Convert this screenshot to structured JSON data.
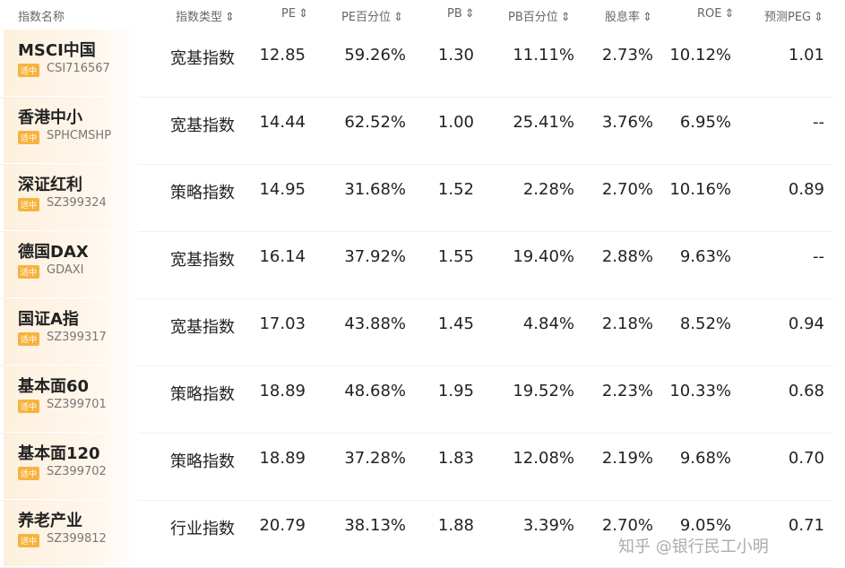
{
  "headers": [
    "指数名称",
    "指数类型",
    "PE",
    "PE百分位",
    "PB",
    "PB百分位",
    "股息率",
    "ROE",
    "预测PEG"
  ],
  "tag_label": "适中",
  "rows": [
    {
      "name": "MSCI中国",
      "code": "CSI716567",
      "type": "宽基指数",
      "pe": "12.85",
      "pe_pct": "59.26%",
      "pb": "1.30",
      "pb_pct": "11.11%",
      "dy": "2.73%",
      "roe": "10.12%",
      "peg": "1.01"
    },
    {
      "name": "香港中小",
      "code": "SPHCMSHP",
      "type": "宽基指数",
      "pe": "14.44",
      "pe_pct": "62.52%",
      "pb": "1.00",
      "pb_pct": "25.41%",
      "dy": "3.76%",
      "roe": "6.95%",
      "peg": "--"
    },
    {
      "name": "深证红利",
      "code": "SZ399324",
      "type": "策略指数",
      "pe": "14.95",
      "pe_pct": "31.68%",
      "pb": "1.52",
      "pb_pct": "2.28%",
      "dy": "2.70%",
      "roe": "10.16%",
      "peg": "0.89"
    },
    {
      "name": "德国DAX",
      "code": "GDAXI",
      "type": "宽基指数",
      "pe": "16.14",
      "pe_pct": "37.92%",
      "pb": "1.55",
      "pb_pct": "19.40%",
      "dy": "2.88%",
      "roe": "9.63%",
      "peg": "--"
    },
    {
      "name": "国证A指",
      "code": "SZ399317",
      "type": "宽基指数",
      "pe": "17.03",
      "pe_pct": "43.88%",
      "pb": "1.45",
      "pb_pct": "4.84%",
      "dy": "2.18%",
      "roe": "8.52%",
      "peg": "0.94"
    },
    {
      "name": "基本面60",
      "code": "SZ399701",
      "type": "策略指数",
      "pe": "18.89",
      "pe_pct": "48.68%",
      "pb": "1.95",
      "pb_pct": "19.52%",
      "dy": "2.23%",
      "roe": "10.33%",
      "peg": "0.68"
    },
    {
      "name": "基本面120",
      "code": "SZ399702",
      "type": "策略指数",
      "pe": "18.89",
      "pe_pct": "37.28%",
      "pb": "1.83",
      "pb_pct": "12.08%",
      "dy": "2.19%",
      "roe": "9.68%",
      "peg": "0.70"
    },
    {
      "name": "养老产业",
      "code": "SZ399812",
      "type": "行业指数",
      "pe": "20.79",
      "pe_pct": "38.13%",
      "pb": "1.88",
      "pb_pct": "3.39%",
      "dy": "2.70%",
      "roe": "9.05%",
      "peg": "0.71"
    }
  ],
  "watermark": "知乎 @银行民工小明"
}
